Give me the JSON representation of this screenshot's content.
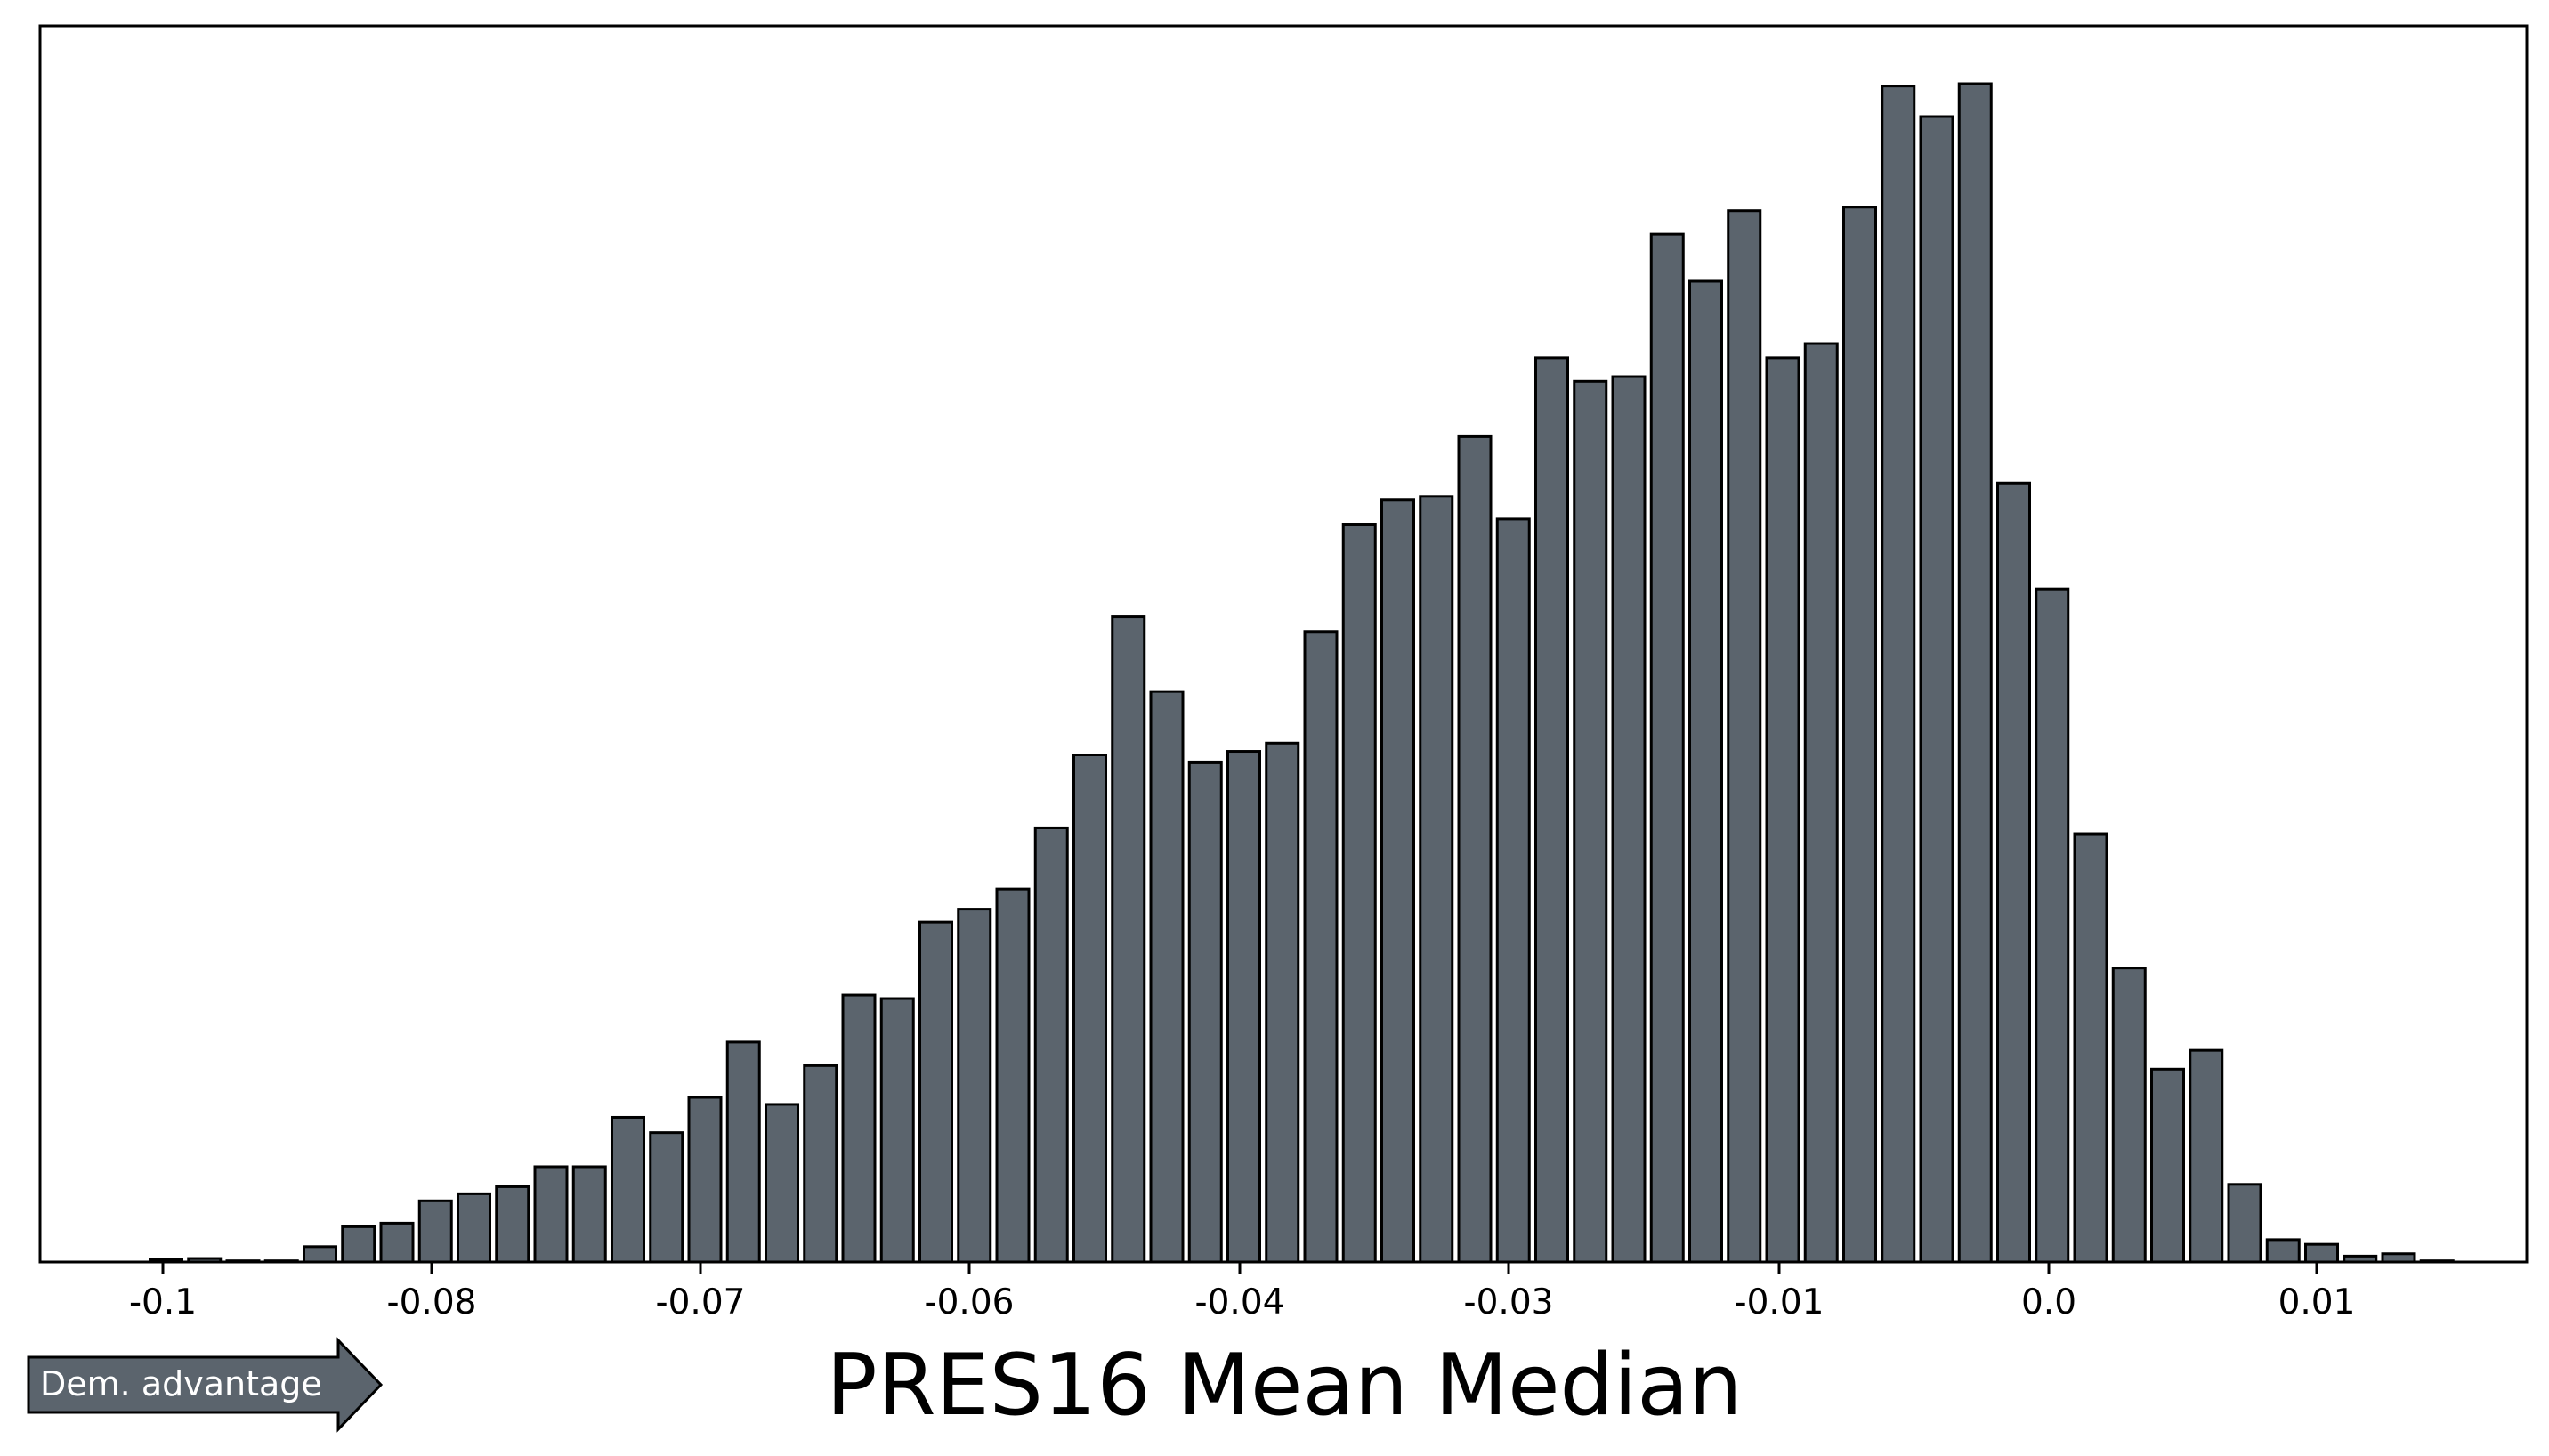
{
  "chart_data": {
    "type": "bar",
    "title": "",
    "xlabel": "PRES16 Mean Median",
    "ylabel": "",
    "x_ticks": [
      "-0.1",
      "-0.08",
      "-0.07",
      "-0.06",
      "-0.04",
      "-0.03",
      "-0.01",
      "0.0",
      "0.01"
    ],
    "x_tick_values": [
      -0.1,
      -0.08,
      -0.07,
      -0.06,
      -0.04,
      -0.03,
      -0.01,
      0.0,
      0.01
    ],
    "xlim": [
      -0.1046,
      -0.0123
    ],
    "y_axis_visible": false,
    "grid": false,
    "bar_color": "#5b646d",
    "edge_color": "#000000",
    "bin_width": 0.001437,
    "x": [
      -0.1,
      -0.0986,
      -0.0971,
      -0.0957,
      -0.0943,
      -0.0928,
      -0.0914,
      -0.09,
      -0.0885,
      -0.0871,
      -0.0857,
      -0.0842,
      -0.0828,
      -0.0814,
      -0.0799,
      -0.0785,
      -0.077,
      -0.0756,
      -0.0742,
      -0.0727,
      -0.0713,
      -0.0699,
      -0.0684,
      -0.067,
      -0.0656,
      -0.0641,
      -0.0627,
      -0.0612,
      -0.0598,
      -0.0584,
      -0.0569,
      -0.0555,
      -0.0541,
      -0.0526,
      -0.0512,
      -0.0498,
      -0.0483,
      -0.0469,
      -0.0455,
      -0.044,
      -0.0426,
      -0.0411,
      -0.0397,
      -0.0383,
      -0.0368,
      -0.0354,
      -0.034,
      -0.0325,
      -0.0311,
      -0.0297,
      -0.0282,
      -0.0268,
      -0.0253,
      -0.0239,
      -0.0225,
      -0.021,
      -0.0196,
      -0.0182,
      -0.0167,
      -0.0153,
      -0.0139
    ],
    "values": [
      2,
      3,
      1,
      1,
      13,
      30,
      33,
      52,
      58,
      64,
      81,
      81,
      123,
      110,
      140,
      187,
      134,
      167,
      227,
      224,
      289,
      300,
      317,
      369,
      431,
      549,
      485,
      425,
      434,
      441,
      536,
      627,
      648,
      651,
      702,
      632,
      769,
      749,
      753,
      874,
      834,
      894,
      769,
      781,
      897,
      1000,
      974,
      1002,
      662,
      572,
      364,
      250,
      164,
      180,
      66,
      19,
      15,
      5,
      7,
      1,
      0
    ],
    "arrow": {
      "label": "Dem. advantage",
      "direction": "right",
      "color": "#5b646d"
    }
  }
}
